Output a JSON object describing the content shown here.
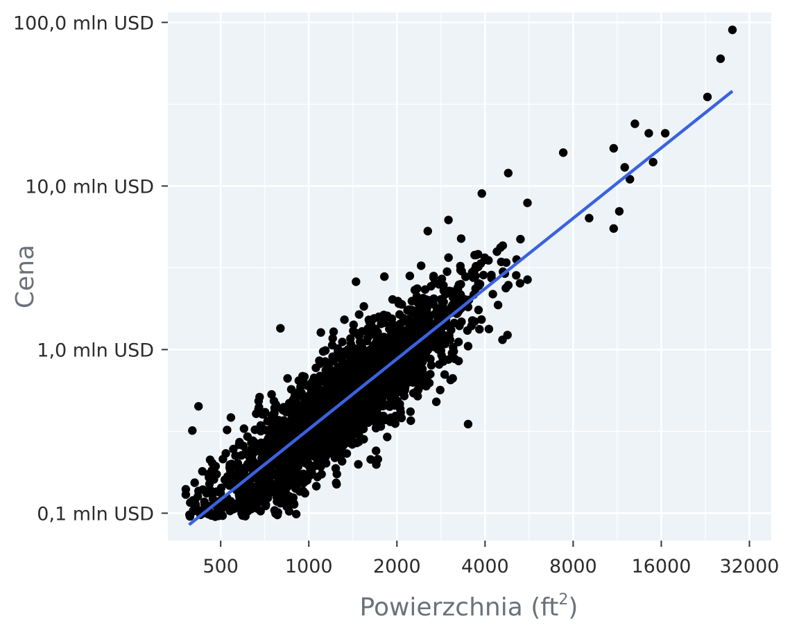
{
  "chart_data": {
    "type": "scatter",
    "title": "",
    "xlabel": "Powierzchnia (ft",
    "xlabel_sup": "2",
    "xlabel_close": ")",
    "ylabel": "Cena",
    "x_scale": "log2",
    "y_scale": "log10",
    "xlim": [
      330,
      38000
    ],
    "ylim": [
      0.068,
      115
    ],
    "x_ticks": [
      500,
      1000,
      2000,
      4000,
      8000,
      16000,
      32000
    ],
    "x_tick_labels": [
      "500",
      "1000",
      "2000",
      "4000",
      "8000",
      "16000",
      "32000"
    ],
    "y_ticks": [
      0.1,
      1,
      10,
      100
    ],
    "y_tick_labels": [
      "0,1 mln USD",
      "1,0 mln USD",
      "10,0 mln USD",
      "100,0 mln USD"
    ],
    "grid": true,
    "background_color": "#edf3f7",
    "grid_color": "#ffffff",
    "point_color": "#000000",
    "line_color": "#3a63e0",
    "regression_line": {
      "x": [
        390,
        28000
      ],
      "y": [
        0.085,
        38
      ]
    },
    "outliers": [
      {
        "x": 28000,
        "y": 90
      },
      {
        "x": 25500,
        "y": 60
      },
      {
        "x": 23000,
        "y": 35
      },
      {
        "x": 13000,
        "y": 24
      },
      {
        "x": 14500,
        "y": 21
      },
      {
        "x": 16500,
        "y": 21
      },
      {
        "x": 15000,
        "y": 14
      },
      {
        "x": 7400,
        "y": 16
      },
      {
        "x": 4800,
        "y": 12
      },
      {
        "x": 11000,
        "y": 17
      },
      {
        "x": 12000,
        "y": 13
      },
      {
        "x": 3900,
        "y": 9
      },
      {
        "x": 12500,
        "y": 11
      },
      {
        "x": 420,
        "y": 0.45
      },
      {
        "x": 400,
        "y": 0.32
      },
      {
        "x": 380,
        "y": 0.14
      },
      {
        "x": 380,
        "y": 0.13
      },
      {
        "x": 3500,
        "y": 0.35
      },
      {
        "x": 800,
        "y": 1.35
      },
      {
        "x": 1450,
        "y": 2.6
      },
      {
        "x": 2550,
        "y": 5.3
      },
      {
        "x": 3000,
        "y": 6.2
      },
      {
        "x": 11000,
        "y": 5.5
      },
      {
        "x": 11500,
        "y": 7
      }
    ]
  }
}
